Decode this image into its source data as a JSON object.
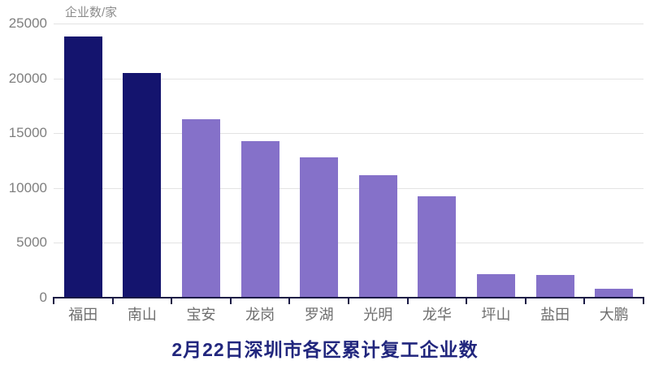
{
  "chart_data": {
    "type": "bar",
    "title": "2月22日深圳市各区累计复工企业数",
    "ylabel": "企业数/家",
    "xlabel": "",
    "categories": [
      "福田",
      "南山",
      "宝安",
      "龙岗",
      "罗湖",
      "光明",
      "龙华",
      "坪山",
      "盐田",
      "大鹏"
    ],
    "values": [
      23800,
      20500,
      16300,
      14300,
      12800,
      11200,
      9250,
      2150,
      2050,
      850
    ],
    "ylim": [
      0,
      25000
    ],
    "yticks": [
      0,
      5000,
      10000,
      15000,
      20000,
      25000
    ],
    "grid": "horizontal",
    "legend": "none",
    "bar_colors": [
      "#14146E",
      "#14146E",
      "#8571C9",
      "#8571C9",
      "#8571C9",
      "#8571C9",
      "#8571C9",
      "#8571C9",
      "#8571C9",
      "#8571C9"
    ],
    "palette": {
      "highlight_bar": "#14146E",
      "default_bar": "#8571C9",
      "axis_line": "#191945",
      "gridline": "#e3e3e3",
      "y_tick_label": "#7f7f7f",
      "x_tick_label": "#6e6e6e",
      "unit_label": "#8c8c8c",
      "title": "#21267d",
      "background": "#ffffff"
    }
  }
}
